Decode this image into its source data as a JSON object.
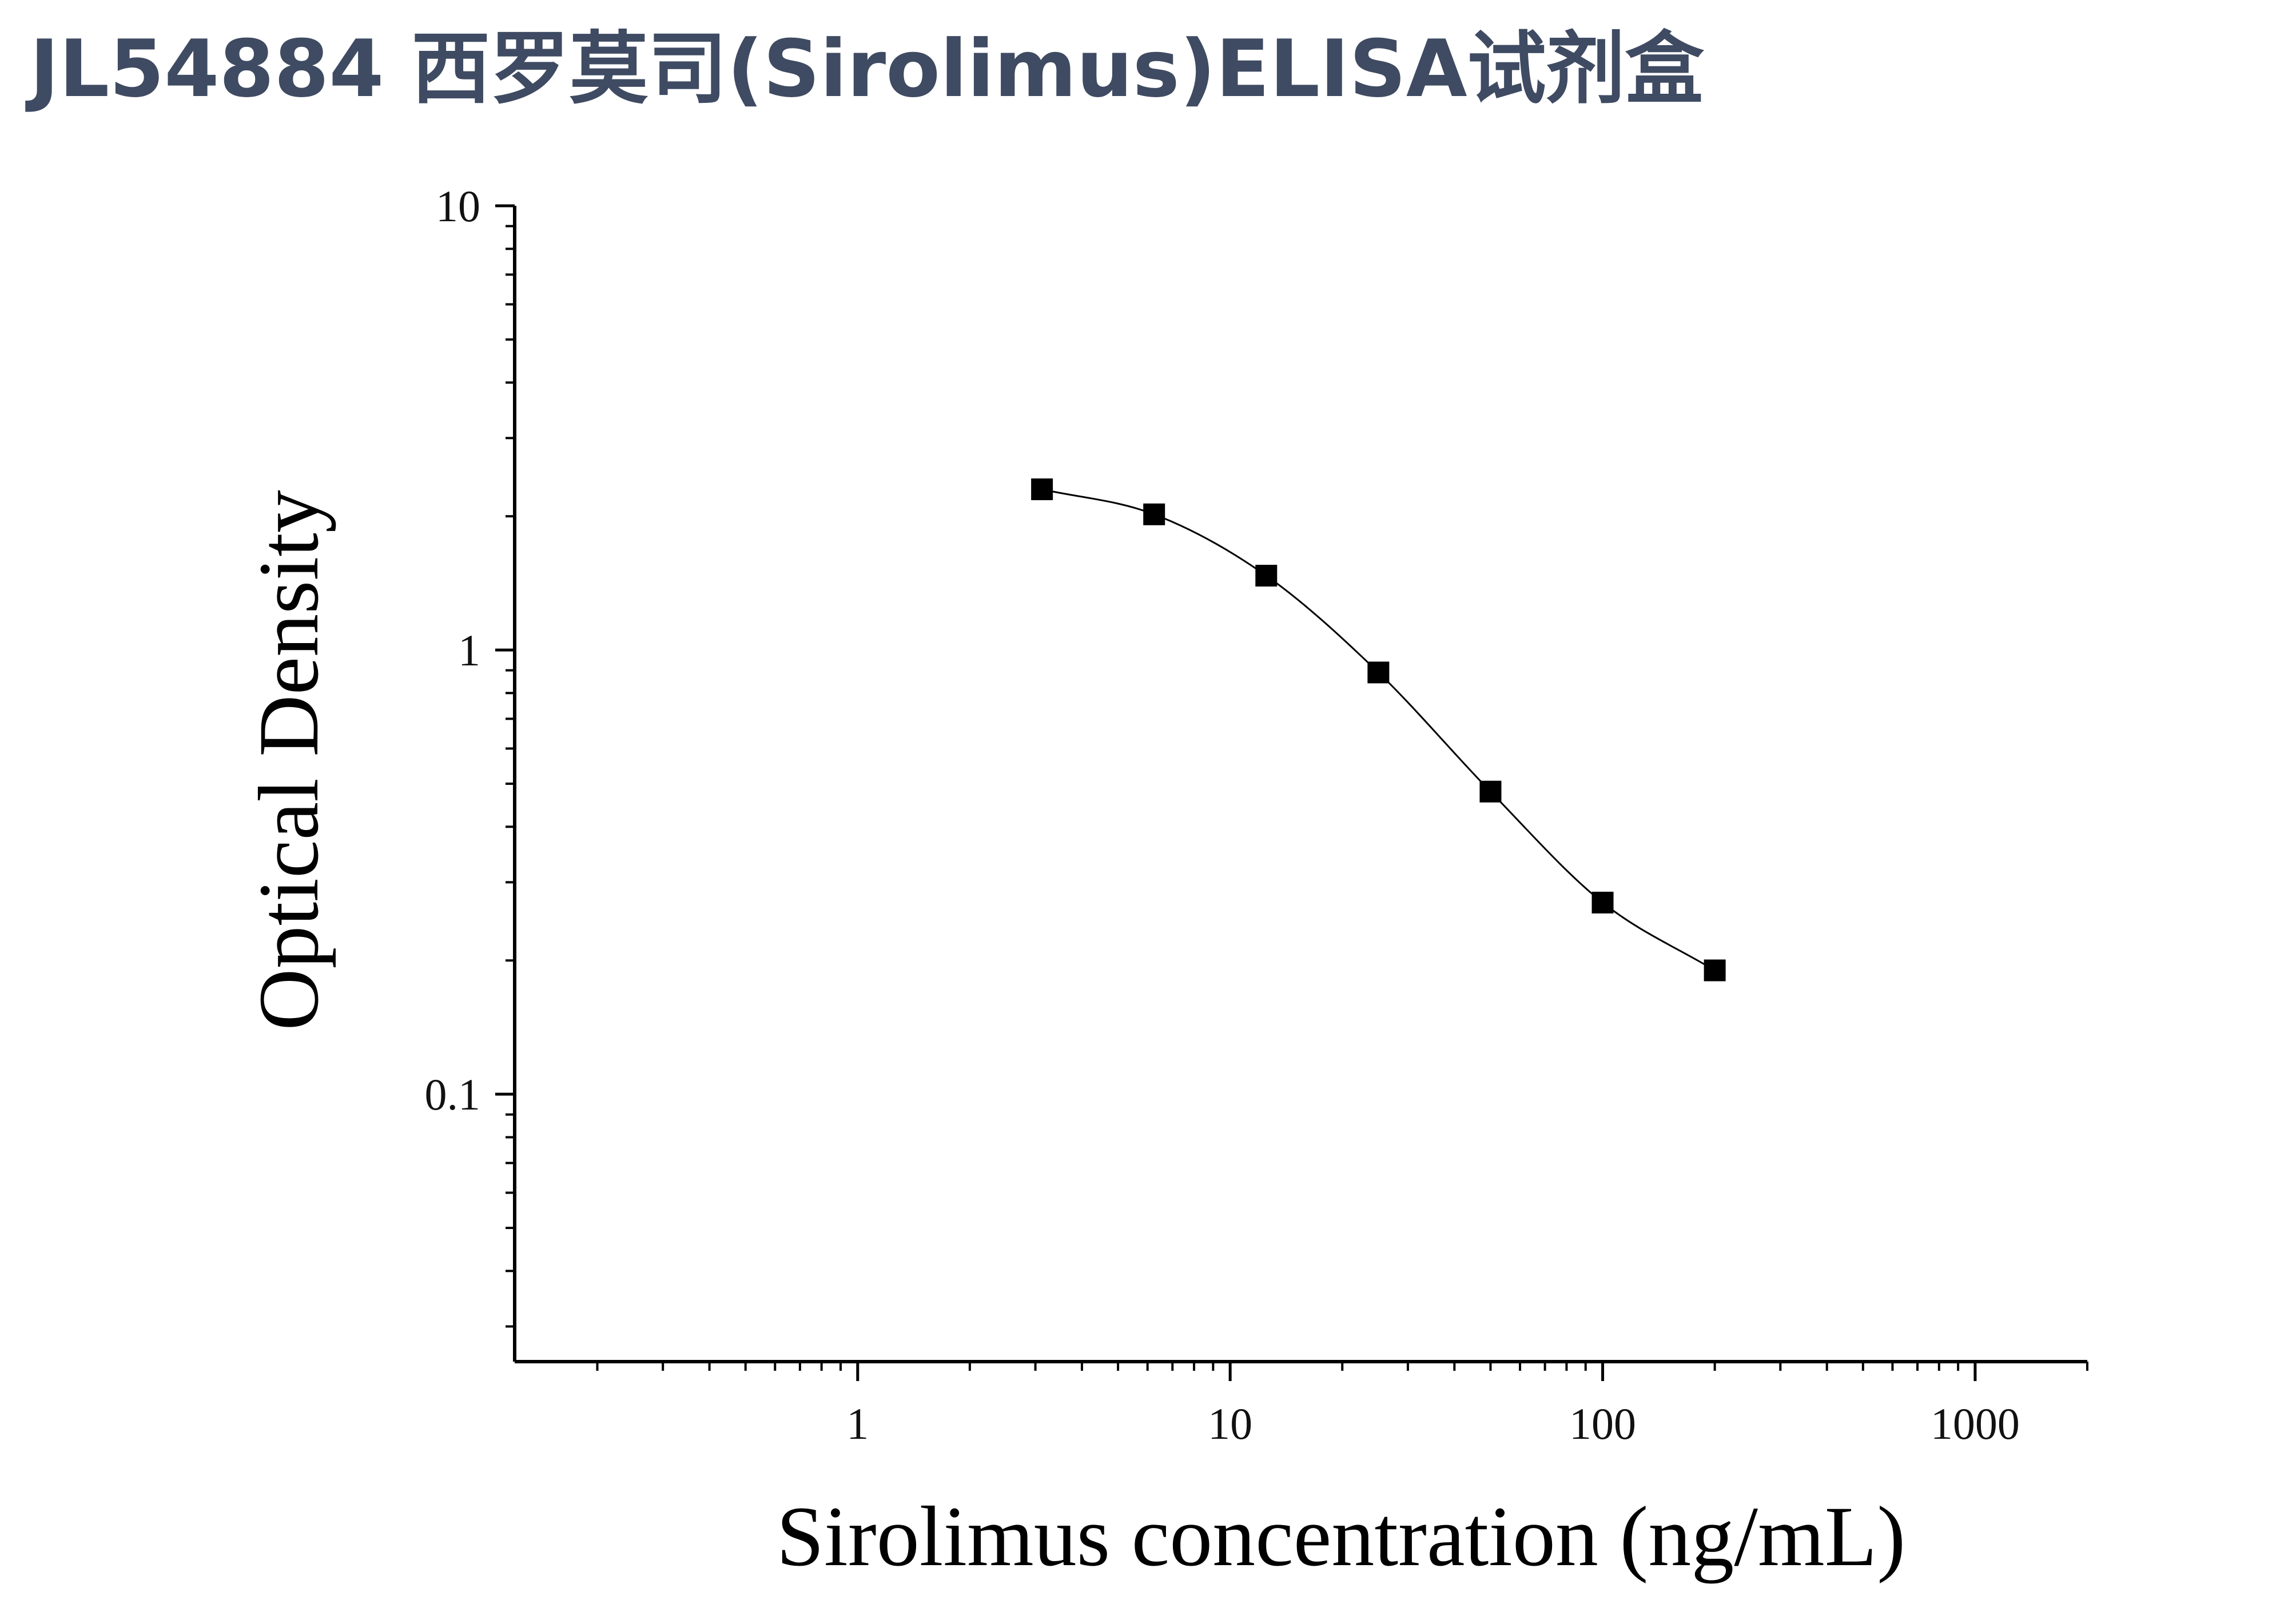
{
  "title": "JL54884 西罗莫司(Sirolimus)ELISA试剂盒",
  "chart_data": {
    "type": "scatter",
    "title": "JL54884 西罗莫司(Sirolimus)ELISA试剂盒",
    "xlabel": "Sirolimus concentration (ng/mL)",
    "ylabel": "Optical Density",
    "xscale": "log",
    "yscale": "log",
    "xlim": [
      0.12,
      2000
    ],
    "ylim": [
      0.025,
      10
    ],
    "x_ticks": [
      1,
      10,
      100,
      1000
    ],
    "x_tick_labels": [
      "1",
      "10",
      "100",
      "1000"
    ],
    "y_ticks": [
      0.1,
      1,
      10
    ],
    "y_tick_labels": [
      "0.1",
      "1",
      "10"
    ],
    "grid": false,
    "legend": "none",
    "marker": "square",
    "color": "#000000",
    "fit": "4-parameter logistic curve",
    "series": [
      {
        "x": [
          3.125,
          6.25,
          12.5,
          25,
          50,
          100,
          200
        ],
        "y": [
          2.3,
          2.02,
          1.47,
          0.89,
          0.48,
          0.27,
          0.19
        ]
      }
    ]
  }
}
